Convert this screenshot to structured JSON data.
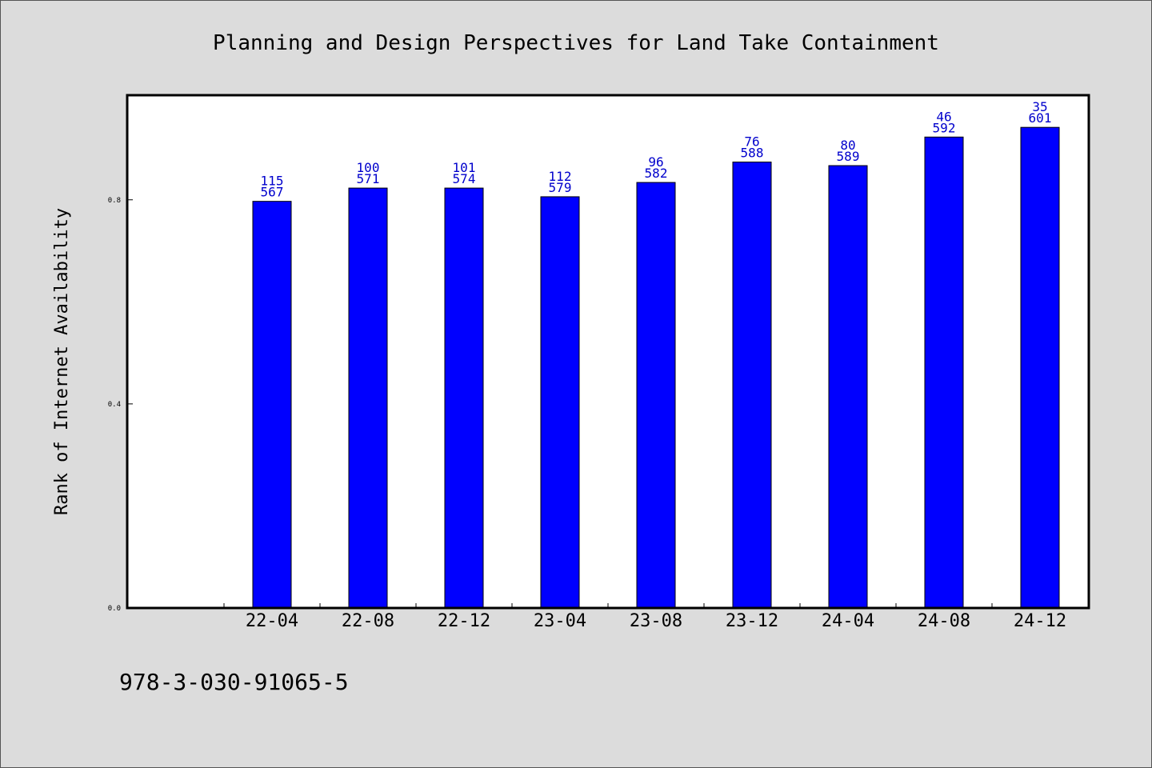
{
  "chart_data": {
    "type": "bar",
    "title": "Planning and Design Perspectives for Land Take Containment",
    "xlabel": "",
    "ylabel": "Rank of Internet Availability",
    "categories": [
      "22-04",
      "22-08",
      "22-12",
      "23-04",
      "23-08",
      "23-12",
      "24-04",
      "24-08",
      "24-12"
    ],
    "values": [
      0.797,
      0.823,
      0.823,
      0.806,
      0.834,
      0.874,
      0.867,
      0.923,
      0.942
    ],
    "labels_top": [
      "115",
      "100",
      "101",
      "112",
      "96",
      "76",
      "80",
      "46",
      "35"
    ],
    "labels_bottom": [
      "567",
      "571",
      "574",
      "579",
      "582",
      "588",
      "589",
      "592",
      "601"
    ],
    "ylim": [
      0,
      1.005
    ],
    "yticks": [
      0.0,
      0.4,
      0.8
    ],
    "ytick_labels": [
      "0.0",
      "0.4",
      "0.8"
    ],
    "grid": false,
    "bar_color": "#0000ff",
    "label_color": "#0000cc"
  },
  "footer": {
    "isbn": "978-3-030-91065-5"
  }
}
